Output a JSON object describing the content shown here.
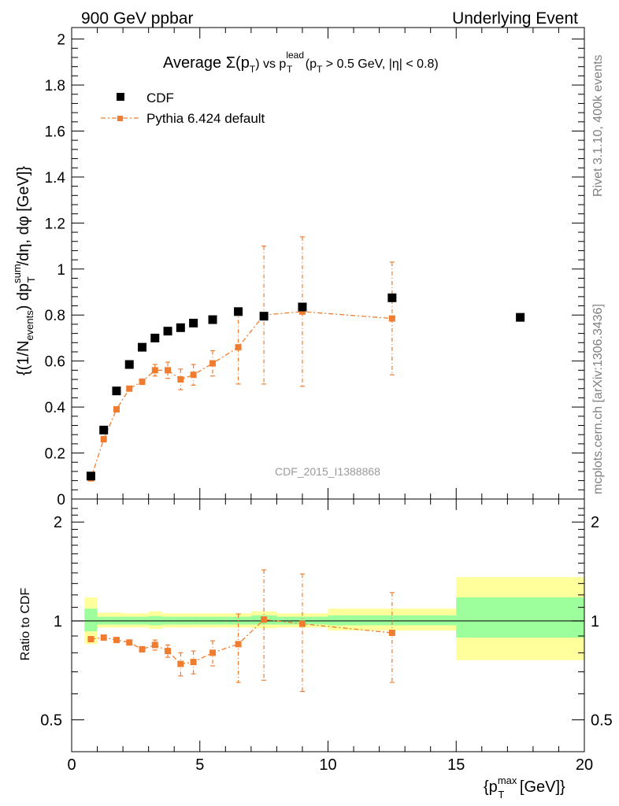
{
  "header": {
    "left": "900 GeV ppbar",
    "right": "Underlying Event"
  },
  "side_labels": {
    "rivet": "Rivet 3.1.10,  400k events",
    "mcplots": "mcplots.cern.ch [arXiv:1306.3436]"
  },
  "chart_data": [
    {
      "type": "scatter",
      "title": "Average Σ(pT) vs pT lead (pT > 0.5 GeV, |η| < 0.8)",
      "title_parts": {
        "prefix": "Average ",
        "sigma": "Σ(p",
        "sub_T": "T",
        "close": ") vs p",
        "sup_lead": "lead",
        "sub_T2": "T",
        "cond1": " (p",
        "sub_T3": "T",
        "cond2": " > 0.5 GeV, |η| < 0.8)"
      },
      "ylabel": "{(1/N_events) dp_T^sum/dη, dφ [GeV]}",
      "ylabel_parts": {
        "a": "{(1/N",
        "sub_events": "events",
        "b": ") dp",
        "sup_sum": "sum",
        "sub_T": "T",
        "c": "/dη, dφ [GeV]}"
      },
      "xlim": [
        0,
        20
      ],
      "ylim": [
        0,
        2.05
      ],
      "yticks": [
        0,
        0.2,
        0.4,
        0.6,
        0.8,
        1,
        1.2,
        1.4,
        1.6,
        1.8,
        2
      ],
      "ytick_labels": [
        "0",
        "0.2",
        "0.4",
        "0.6",
        "0.8",
        "1",
        "1.2",
        "1.4",
        "1.6",
        "1.8",
        "2"
      ],
      "legend_position": "top-left",
      "watermark": "CDF_2015_I1388868",
      "series": [
        {
          "name": "CDF",
          "color": "#000000",
          "marker": "square",
          "x": [
            0.75,
            1.25,
            1.75,
            2.25,
            2.75,
            3.25,
            3.75,
            4.25,
            4.75,
            5.5,
            6.5,
            7.5,
            9.0,
            12.5,
            17.5
          ],
          "y": [
            0.1,
            0.3,
            0.47,
            0.585,
            0.66,
            0.7,
            0.73,
            0.745,
            0.765,
            0.78,
            0.815,
            0.795,
            0.835,
            0.875,
            0.79
          ]
        },
        {
          "name": "Pythia 6.424 default",
          "color": "#f07d2f",
          "marker": "square-line",
          "x": [
            0.75,
            1.25,
            1.75,
            2.25,
            2.75,
            3.25,
            3.75,
            4.25,
            4.75,
            5.5,
            6.5,
            7.5,
            9.0,
            12.5
          ],
          "y": [
            0.09,
            0.26,
            0.39,
            0.48,
            0.51,
            0.56,
            0.56,
            0.52,
            0.54,
            0.59,
            0.66,
            0.8,
            0.815,
            0.785
          ],
          "err": [
            0.005,
            0.008,
            0.01,
            0.01,
            0.012,
            0.025,
            0.035,
            0.045,
            0.045,
            0.055,
            0.16,
            0.3,
            0.325,
            0.245
          ]
        }
      ]
    },
    {
      "type": "scatter",
      "ylabel": "Ratio to CDF",
      "xlabel": "{p_T^max [GeV]}",
      "xlabel_parts": {
        "a": "{p",
        "sup_max": "max",
        "sub_T": "T",
        "b": " [GeV]}"
      },
      "xlim": [
        0,
        20
      ],
      "ylim": [
        0.4,
        2.35
      ],
      "yscale": "log",
      "xticks": [
        0,
        5,
        10,
        15,
        20
      ],
      "xtick_labels": [
        "0",
        "5",
        "10",
        "15",
        "20"
      ],
      "yticks": [
        0.5,
        1,
        2
      ],
      "ytick_labels": [
        "0.5",
        "1",
        "2"
      ],
      "bands": {
        "colors": {
          "stat": "#9cff9c",
          "total": "#ffff9c"
        },
        "bins": [
          {
            "x": [
              0.5,
              1.0
            ],
            "stat": [
              0.93,
              1.09
            ],
            "total": [
              0.85,
              1.18
            ]
          },
          {
            "x": [
              1.0,
              1.5
            ],
            "stat": [
              0.975,
              1.03
            ],
            "total": [
              0.955,
              1.06
            ]
          },
          {
            "x": [
              1.5,
              2.0
            ],
            "stat": [
              0.975,
              1.03
            ],
            "total": [
              0.955,
              1.06
            ]
          },
          {
            "x": [
              2.0,
              2.5
            ],
            "stat": [
              0.975,
              1.03
            ],
            "total": [
              0.955,
              1.055
            ]
          },
          {
            "x": [
              2.5,
              3.0
            ],
            "stat": [
              0.975,
              1.03
            ],
            "total": [
              0.955,
              1.055
            ]
          },
          {
            "x": [
              3.0,
              3.5
            ],
            "stat": [
              0.97,
              1.035
            ],
            "total": [
              0.945,
              1.07
            ]
          },
          {
            "x": [
              3.5,
              4.0
            ],
            "stat": [
              0.975,
              1.03
            ],
            "total": [
              0.955,
              1.055
            ]
          },
          {
            "x": [
              4.0,
              4.5
            ],
            "stat": [
              0.975,
              1.03
            ],
            "total": [
              0.955,
              1.055
            ]
          },
          {
            "x": [
              4.5,
              5.0
            ],
            "stat": [
              0.975,
              1.03
            ],
            "total": [
              0.955,
              1.055
            ]
          },
          {
            "x": [
              5.0,
              6.0
            ],
            "stat": [
              0.975,
              1.03
            ],
            "total": [
              0.955,
              1.055
            ]
          },
          {
            "x": [
              6.0,
              7.0
            ],
            "stat": [
              0.975,
              1.03
            ],
            "total": [
              0.955,
              1.055
            ]
          },
          {
            "x": [
              7.0,
              8.0
            ],
            "stat": [
              0.975,
              1.04
            ],
            "total": [
              0.95,
              1.07
            ]
          },
          {
            "x": [
              8.0,
              10.0
            ],
            "stat": [
              0.975,
              1.03
            ],
            "total": [
              0.955,
              1.055
            ]
          },
          {
            "x": [
              10.0,
              15.0
            ],
            "stat": [
              0.97,
              1.04
            ],
            "total": [
              0.935,
              1.09
            ]
          },
          {
            "x": [
              15.0,
              20.0
            ],
            "stat": [
              0.89,
              1.18
            ],
            "total": [
              0.76,
              1.36
            ]
          }
        ]
      },
      "series": [
        {
          "name": "Pythia 6.424 default",
          "color": "#f07d2f",
          "x": [
            0.75,
            1.25,
            1.75,
            2.25,
            2.75,
            3.25,
            3.75,
            4.25,
            4.75,
            5.5,
            6.5,
            7.5,
            9.0,
            12.5
          ],
          "y": [
            0.88,
            0.89,
            0.875,
            0.86,
            0.82,
            0.845,
            0.81,
            0.74,
            0.75,
            0.8,
            0.85,
            1.01,
            0.98,
            0.92
          ],
          "err_lo": [
            0.01,
            0.01,
            0.012,
            0.012,
            0.015,
            0.03,
            0.035,
            0.06,
            0.06,
            0.07,
            0.2,
            0.35,
            0.37,
            0.27
          ],
          "err_hi": [
            0.01,
            0.01,
            0.012,
            0.012,
            0.015,
            0.03,
            0.035,
            0.06,
            0.06,
            0.07,
            0.2,
            0.42,
            0.41,
            0.3
          ]
        }
      ]
    }
  ]
}
